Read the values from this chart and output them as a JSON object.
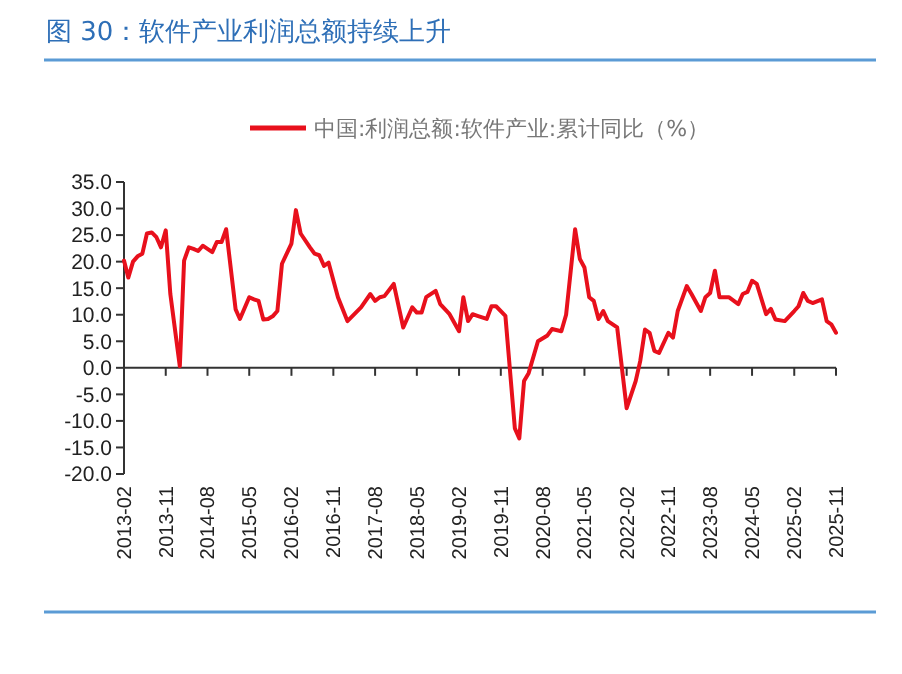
{
  "chart_data": {
    "type": "line",
    "title": "图 30：软件产业利润总额持续上升",
    "x": [
      "2013-02",
      "2013-03",
      "2013-04",
      "2013-05",
      "2013-06",
      "2013-07",
      "2013-08",
      "2013-09",
      "2013-10",
      "2013-11",
      "2013-12",
      "2014-02",
      "2014-03",
      "2014-04",
      "2014-05",
      "2014-06",
      "2014-07",
      "2014-09",
      "2014-10",
      "2014-11",
      "2014-12",
      "2015-02",
      "2015-03",
      "2015-05",
      "2015-06",
      "2015-07",
      "2015-08",
      "2015-09",
      "2015-10",
      "2015-11",
      "2015-12",
      "2016-02",
      "2016-03",
      "2016-04",
      "2016-06",
      "2016-07",
      "2016-08",
      "2016-09",
      "2016-10",
      "2016-12",
      "2017-02",
      "2017-05",
      "2017-07",
      "2017-08",
      "2017-09",
      "2017-10",
      "2017-12",
      "2018-02",
      "2018-04",
      "2018-05",
      "2018-06",
      "2018-07",
      "2018-09",
      "2018-10",
      "2018-12",
      "2019-02",
      "2019-03",
      "2019-04",
      "2019-05",
      "2019-06",
      "2019-08",
      "2019-09",
      "2019-10",
      "2019-12",
      "2020-02",
      "2020-03",
      "2020-04",
      "2020-05",
      "2020-07",
      "2020-09",
      "2020-10",
      "2020-12",
      "2021-01",
      "2021-03",
      "2021-04",
      "2021-05",
      "2021-06",
      "2021-07",
      "2021-08",
      "2021-09",
      "2021-10",
      "2021-12",
      "2022-02",
      "2022-04",
      "2022-05",
      "2022-06",
      "2022-07",
      "2022-08",
      "2022-09",
      "2022-11",
      "2022-12",
      "2023-01",
      "2023-03",
      "2023-04",
      "2023-06",
      "2023-07",
      "2023-08",
      "2023-09",
      "2023-10",
      "2023-12",
      "2024-02",
      "2024-03",
      "2024-04",
      "2024-05",
      "2024-06",
      "2024-08",
      "2024-09",
      "2024-10",
      "2024-12",
      "2025-02",
      "2025-03",
      "2025-04",
      "2025-05",
      "2025-06",
      "2025-08",
      "2025-09",
      "2025-10",
      "2025-11"
    ],
    "series": [
      {
        "name": "中国:利润总额:软件产业:累计同比（%）",
        "color": "#e8101c",
        "values": [
          20.2,
          17,
          20,
          21,
          21.5,
          25.3,
          25.5,
          24.6,
          22.7,
          25.9,
          13.9,
          0.3,
          20.2,
          22.7,
          22.4,
          22,
          23,
          21.8,
          23.7,
          23.7,
          26.1,
          11,
          9.2,
          13.3,
          12.9,
          12.6,
          9.1,
          9.2,
          9.7,
          10.7,
          19.6,
          23.4,
          29.7,
          25.3,
          22.7,
          21.5,
          21.2,
          19.2,
          19.8,
          13.3,
          8.8,
          11.4,
          13.9,
          12.6,
          13.3,
          13.5,
          15.8,
          7.6,
          11.4,
          10.4,
          10.4,
          13.3,
          14.5,
          12,
          10.1,
          6.9,
          13.3,
          8.8,
          10.1,
          9.8,
          9.2,
          11.6,
          11.6,
          9.8,
          -11.4,
          -13.3,
          -2.5,
          -1,
          5,
          6.1,
          7.3,
          6.9,
          10,
          26.1,
          20.5,
          18.9,
          13.3,
          12.6,
          9.2,
          10.7,
          8.8,
          7.6,
          -7.6,
          -2.5,
          1.3,
          7.2,
          6.6,
          3.2,
          2.8,
          6.6,
          5.7,
          10.7,
          15.4,
          13.9,
          10.7,
          13.3,
          14.1,
          18.3,
          13.3,
          13.3,
          12,
          13.9,
          14.3,
          16.4,
          15.8,
          10.1,
          11.1,
          9.1,
          8.8,
          10.7,
          11.6,
          14.1,
          12.6,
          12.2,
          12.9,
          8.8,
          8.2,
          6.6
        ]
      }
    ],
    "xlim": [
      "2013-02",
      "2025-11"
    ],
    "xticks": [
      "2013-02",
      "2013-11",
      "2014-08",
      "2015-05",
      "2016-02",
      "2016-11",
      "2017-08",
      "2018-05",
      "2019-02",
      "2019-11",
      "2020-08",
      "2021-05",
      "2022-02",
      "2022-11",
      "2023-08",
      "2024-05",
      "2025-02",
      "2025-11"
    ],
    "ylim": [
      -20,
      35
    ],
    "yticks": [
      {
        "value": -20,
        "label": "-20.0"
      },
      {
        "value": -15,
        "label": "-15.0"
      },
      {
        "value": -10,
        "label": "-10.0"
      },
      {
        "value": -5,
        "label": "-5.0"
      },
      {
        "value": 0,
        "label": "0.0"
      },
      {
        "value": 5,
        "label": "5.0"
      },
      {
        "value": 10,
        "label": "10.0"
      },
      {
        "value": 15,
        "label": "15.0"
      },
      {
        "value": 20,
        "label": "20.0"
      },
      {
        "value": 25,
        "label": "25.0"
      },
      {
        "value": 30,
        "label": "30.0"
      },
      {
        "value": 35,
        "label": "35.0"
      }
    ],
    "legend": "top",
    "marker": "none",
    "line_style": "solid"
  }
}
